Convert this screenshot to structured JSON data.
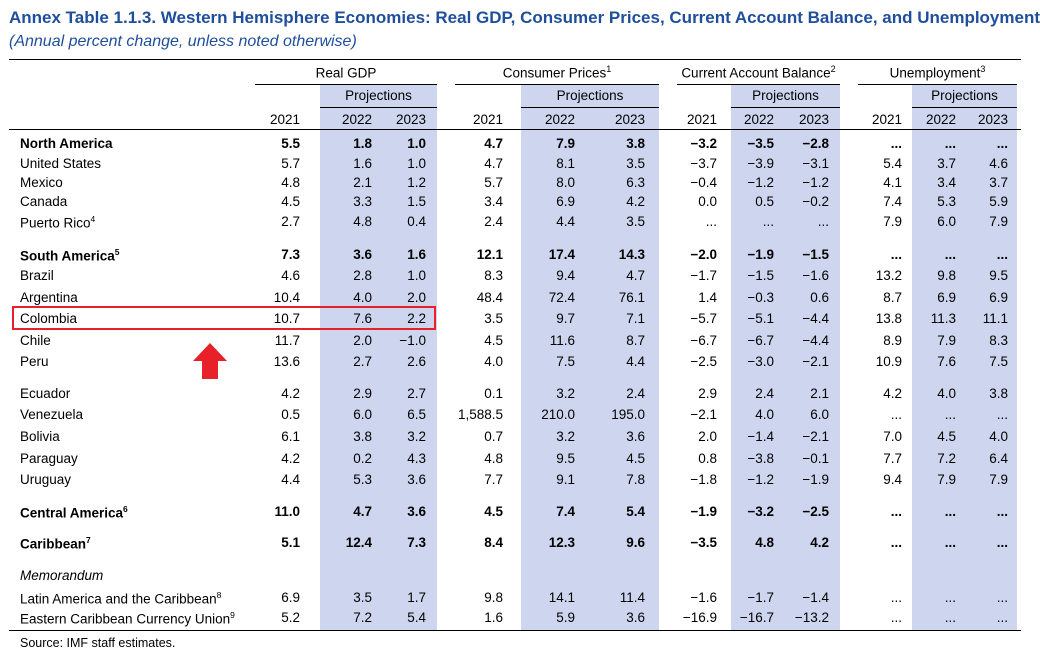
{
  "title": "Annex Table 1.1.3. Western Hemisphere Economies: Real GDP, Consumer Prices, Current Account Balance, and Unemployment",
  "subtitle": "(Annual percent change, unless noted otherwise)",
  "groups": [
    {
      "label": "Real GDP",
      "note": ""
    },
    {
      "label": "Consumer Prices",
      "note": "1"
    },
    {
      "label": "Current Account Balance",
      "note": "2"
    },
    {
      "label": "Unemployment",
      "note": "3"
    }
  ],
  "projections_label": "Projections",
  "years": [
    "2021",
    "2022",
    "2023"
  ],
  "rows": [
    {
      "label": "North America",
      "note": "",
      "bold": true,
      "values": [
        "5.5",
        "1.8",
        "1.0",
        "4.7",
        "7.9",
        "3.8",
        "−3.2",
        "−3.5",
        "−2.8",
        "...",
        "...",
        "..."
      ]
    },
    {
      "label": "United States",
      "note": "",
      "bold": false,
      "values": [
        "5.7",
        "1.6",
        "1.0",
        "4.7",
        "8.1",
        "3.5",
        "−3.7",
        "−3.9",
        "−3.1",
        "5.4",
        "3.7",
        "4.6"
      ]
    },
    {
      "label": "Mexico",
      "note": "",
      "bold": false,
      "values": [
        "4.8",
        "2.1",
        "1.2",
        "5.7",
        "8.0",
        "6.3",
        "−0.4",
        "−1.2",
        "−1.2",
        "4.1",
        "3.4",
        "3.7"
      ]
    },
    {
      "label": "Canada",
      "note": "",
      "bold": false,
      "values": [
        "4.5",
        "3.3",
        "1.5",
        "3.4",
        "6.9",
        "4.2",
        "0.0",
        "0.5",
        "−0.2",
        "7.4",
        "5.3",
        "5.9"
      ]
    },
    {
      "label": "Puerto Rico",
      "note": "4",
      "bold": false,
      "values": [
        "2.7",
        "4.8",
        "0.4",
        "2.4",
        "4.4",
        "3.5",
        "...",
        "...",
        "...",
        "7.9",
        "6.0",
        "7.9"
      ]
    },
    {
      "label": "South America",
      "note": "5",
      "bold": true,
      "values": [
        "7.3",
        "3.6",
        "1.6",
        "12.1",
        "17.4",
        "14.3",
        "−2.0",
        "−1.9",
        "−1.5",
        "...",
        "...",
        "..."
      ]
    },
    {
      "label": "Brazil",
      "note": "",
      "bold": false,
      "values": [
        "4.6",
        "2.8",
        "1.0",
        "8.3",
        "9.4",
        "4.7",
        "−1.7",
        "−1.5",
        "−1.6",
        "13.2",
        "9.8",
        "9.5"
      ]
    },
    {
      "label": "Argentina",
      "note": "",
      "bold": false,
      "values": [
        "10.4",
        "4.0",
        "2.0",
        "48.4",
        "72.4",
        "76.1",
        "1.4",
        "−0.3",
        "0.6",
        "8.7",
        "6.9",
        "6.9"
      ]
    },
    {
      "label": "Colombia",
      "note": "",
      "bold": false,
      "values": [
        "10.7",
        "7.6",
        "2.2",
        "3.5",
        "9.7",
        "7.1",
        "−5.7",
        "−5.1",
        "−4.4",
        "13.8",
        "11.3",
        "11.1"
      ]
    },
    {
      "label": "Chile",
      "note": "",
      "bold": false,
      "values": [
        "11.7",
        "2.0",
        "−1.0",
        "4.5",
        "11.6",
        "8.7",
        "−6.7",
        "−6.7",
        "−4.4",
        "8.9",
        "7.9",
        "8.3"
      ]
    },
    {
      "label": "Peru",
      "note": "",
      "bold": false,
      "values": [
        "13.6",
        "2.7",
        "2.6",
        "4.0",
        "7.5",
        "4.4",
        "−2.5",
        "−3.0",
        "−2.1",
        "10.9",
        "7.6",
        "7.5"
      ]
    },
    {
      "label": "Ecuador",
      "note": "",
      "bold": false,
      "values": [
        "4.2",
        "2.9",
        "2.7",
        "0.1",
        "3.2",
        "2.4",
        "2.9",
        "2.4",
        "2.1",
        "4.2",
        "4.0",
        "3.8"
      ]
    },
    {
      "label": "Venezuela",
      "note": "",
      "bold": false,
      "values": [
        "0.5",
        "6.0",
        "6.5",
        "1,588.5",
        "210.0",
        "195.0",
        "−2.1",
        "4.0",
        "6.0",
        "...",
        "...",
        "..."
      ]
    },
    {
      "label": "Bolivia",
      "note": "",
      "bold": false,
      "values": [
        "6.1",
        "3.8",
        "3.2",
        "0.7",
        "3.2",
        "3.6",
        "2.0",
        "−1.4",
        "−2.1",
        "7.0",
        "4.5",
        "4.0"
      ]
    },
    {
      "label": "Paraguay",
      "note": "",
      "bold": false,
      "values": [
        "4.2",
        "0.2",
        "4.3",
        "4.8",
        "9.5",
        "4.5",
        "0.8",
        "−3.8",
        "−0.1",
        "7.7",
        "7.2",
        "6.4"
      ]
    },
    {
      "label": "Uruguay",
      "note": "",
      "bold": false,
      "values": [
        "4.4",
        "5.3",
        "3.6",
        "7.7",
        "9.1",
        "7.8",
        "−1.8",
        "−1.2",
        "−1.9",
        "9.4",
        "7.9",
        "7.9"
      ]
    },
    {
      "label": "Central America",
      "note": "6",
      "bold": true,
      "values": [
        "11.0",
        "4.7",
        "3.6",
        "4.5",
        "7.4",
        "5.4",
        "−1.9",
        "−3.2",
        "−2.5",
        "...",
        "...",
        "..."
      ]
    },
    {
      "label": "Caribbean",
      "note": "7",
      "bold": true,
      "values": [
        "5.1",
        "12.4",
        "7.3",
        "8.4",
        "12.3",
        "9.6",
        "−3.5",
        "4.8",
        "4.2",
        "...",
        "...",
        "..."
      ]
    },
    {
      "label": "Memorandum",
      "note": "",
      "bold": false,
      "memo": true,
      "values": []
    },
    {
      "label": "Latin America and the Caribbean",
      "note": "8",
      "bold": false,
      "values": [
        "6.9",
        "3.5",
        "1.7",
        "9.8",
        "14.1",
        "11.4",
        "−1.6",
        "−1.7",
        "−1.4",
        "...",
        "...",
        "..."
      ]
    },
    {
      "label": "Eastern Caribbean Currency Union",
      "note": "9",
      "bold": false,
      "values": [
        "5.2",
        "7.2",
        "5.4",
        "1.6",
        "5.9",
        "3.6",
        "−16.9",
        "−16.7",
        "−13.2",
        "...",
        "...",
        "..."
      ]
    }
  ],
  "source": "Source: IMF staff estimates.",
  "colors": {
    "title": "#1f4e9c",
    "projection_shade": "#cdd6ee",
    "highlight": "#e8202a"
  }
}
